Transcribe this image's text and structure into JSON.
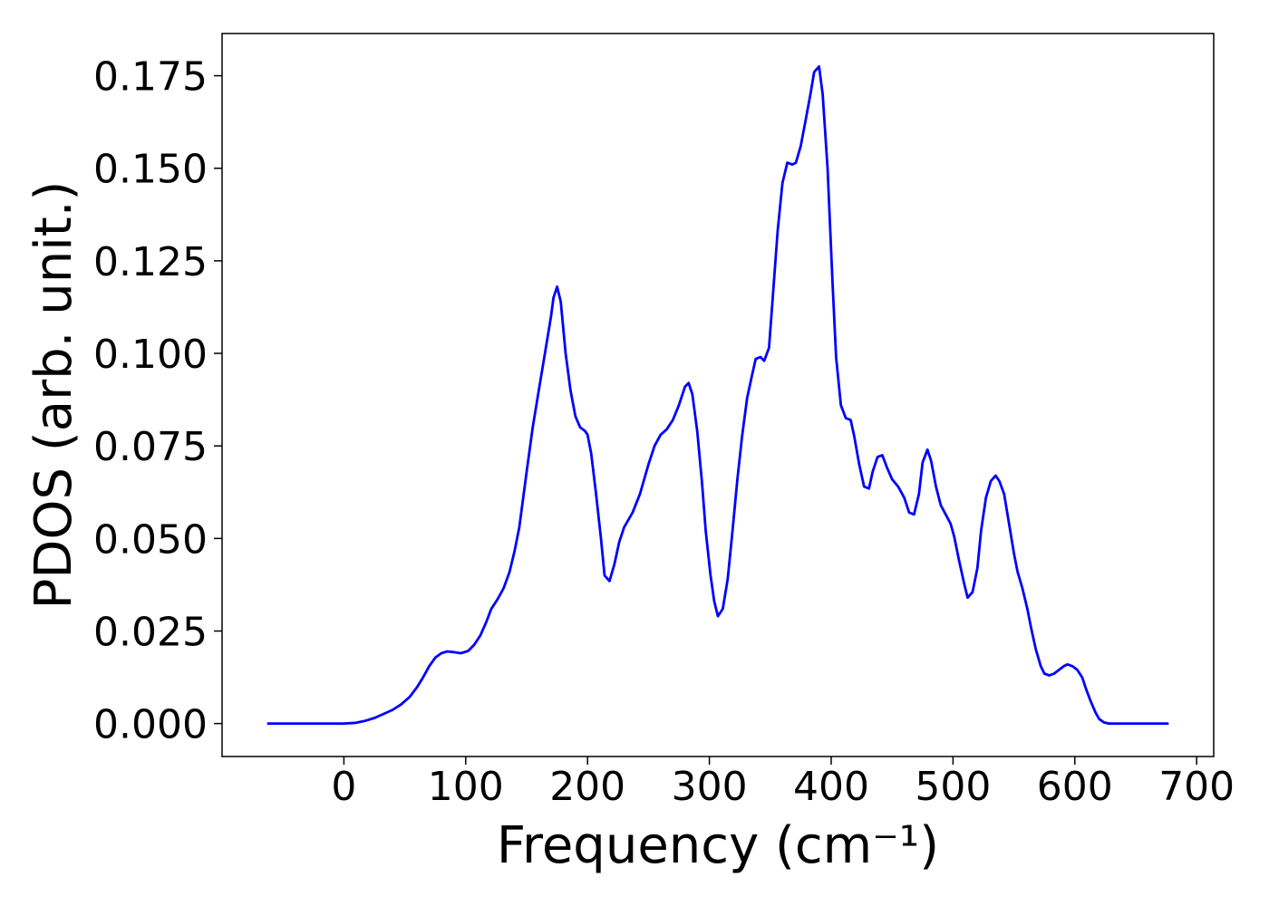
{
  "chart_data": {
    "type": "line",
    "xlabel": "Frequency (cm⁻¹)",
    "ylabel": "PDOS (arb. unit.)",
    "color": "#0000ff",
    "xlim": [
      -100,
      714
    ],
    "ylim": [
      -0.0089,
      0.1864
    ],
    "xticks": [
      0,
      100,
      200,
      300,
      400,
      500,
      600,
      700
    ],
    "yticks": [
      {
        "value": 0,
        "label": "0.000"
      },
      {
        "value": 0.025,
        "label": "0.025"
      },
      {
        "value": 0.05,
        "label": "0.050"
      },
      {
        "value": 0.075,
        "label": "0.075"
      },
      {
        "value": 0.1,
        "label": "0.100"
      },
      {
        "value": 0.125,
        "label": "0.125"
      },
      {
        "value": 0.15,
        "label": "0.150"
      },
      {
        "value": 0.175,
        "label": "0.175"
      }
    ],
    "x": [
      -63,
      0,
      10,
      17,
      25,
      32,
      40,
      47,
      54,
      60,
      65,
      70,
      75,
      80,
      85,
      90,
      96,
      102,
      107,
      112,
      117,
      121,
      126,
      131,
      136,
      140,
      144,
      150,
      155,
      160,
      165,
      170,
      172,
      175,
      178,
      182,
      186,
      190,
      194,
      198,
      200,
      203,
      207,
      211,
      214,
      218,
      222,
      226,
      230,
      237,
      243,
      250,
      255,
      260,
      265,
      270,
      275,
      280,
      283,
      286,
      290,
      294,
      297,
      301,
      304,
      307,
      311,
      315,
      319,
      323,
      327,
      331,
      335,
      338,
      342,
      345,
      349,
      352,
      356,
      360,
      364,
      368,
      371,
      375,
      379,
      383,
      386,
      390,
      393,
      397,
      401,
      404,
      408,
      412,
      416,
      419,
      423,
      427,
      431,
      434,
      438,
      442,
      446,
      450,
      455,
      460,
      464,
      468,
      472,
      475,
      479,
      482,
      486,
      490,
      494,
      498,
      501,
      505,
      509,
      512,
      516,
      520,
      523,
      527,
      531,
      535,
      538,
      542,
      546,
      550,
      553,
      557,
      561,
      564,
      568,
      572,
      575,
      579,
      583,
      587,
      591,
      594,
      598,
      602,
      606,
      609,
      613,
      617,
      620,
      624,
      628,
      677
    ],
    "values": [
      0,
      0,
      0.0002,
      0.0007,
      0.0015,
      0.0025,
      0.0037,
      0.0052,
      0.0072,
      0.0098,
      0.0125,
      0.0155,
      0.0178,
      0.019,
      0.0195,
      0.0193,
      0.019,
      0.0196,
      0.0213,
      0.0238,
      0.0275,
      0.031,
      0.0335,
      0.0365,
      0.041,
      0.0465,
      0.053,
      0.068,
      0.08,
      0.09,
      0.1,
      0.11,
      0.115,
      0.118,
      0.114,
      0.1,
      0.09,
      0.083,
      0.08,
      0.079,
      0.078,
      0.073,
      0.062,
      0.05,
      0.04,
      0.0385,
      0.043,
      0.049,
      0.053,
      0.057,
      0.062,
      0.07,
      0.075,
      0.078,
      0.0795,
      0.082,
      0.086,
      0.091,
      0.092,
      0.089,
      0.079,
      0.065,
      0.052,
      0.04,
      0.033,
      0.029,
      0.031,
      0.039,
      0.052,
      0.066,
      0.078,
      0.088,
      0.094,
      0.0985,
      0.099,
      0.098,
      0.1015,
      0.115,
      0.133,
      0.146,
      0.1515,
      0.151,
      0.1515,
      0.156,
      0.163,
      0.17,
      0.176,
      0.1775,
      0.17,
      0.15,
      0.12,
      0.099,
      0.086,
      0.0825,
      0.082,
      0.0775,
      0.07,
      0.064,
      0.0635,
      0.068,
      0.072,
      0.0725,
      0.069,
      0.066,
      0.064,
      0.061,
      0.057,
      0.0565,
      0.062,
      0.0705,
      0.074,
      0.071,
      0.064,
      0.059,
      0.0565,
      0.054,
      0.0505,
      0.044,
      0.038,
      0.034,
      0.0355,
      0.042,
      0.052,
      0.061,
      0.0655,
      0.067,
      0.0655,
      0.062,
      0.054,
      0.046,
      0.041,
      0.0365,
      0.031,
      0.026,
      0.02,
      0.0155,
      0.0135,
      0.013,
      0.0135,
      0.0145,
      0.0155,
      0.016,
      0.0155,
      0.0145,
      0.0125,
      0.0095,
      0.006,
      0.003,
      0.0012,
      0.0003,
      0,
      0
    ]
  }
}
